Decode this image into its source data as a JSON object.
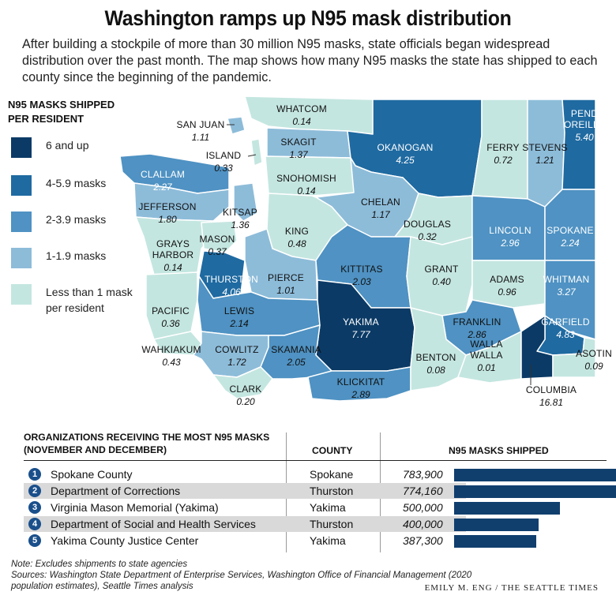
{
  "header": {
    "title": "Washington ramps up N95 mask distribution",
    "subtitle": "After building a stockpile of more than 30 million N95 masks, state officials began widespread distribution over the past month. The map shows how many N95 masks the state has shipped to each county since the beginning of the pandemic."
  },
  "legend": {
    "title": "N95 MASKS SHIPPED PER RESIDENT",
    "items": [
      {
        "label": "6 and up",
        "color": "#0b3a66"
      },
      {
        "label": "4-5.9 masks",
        "color": "#1f6aa1"
      },
      {
        "label": "2-3.9 masks",
        "color": "#4f92c3"
      },
      {
        "label": "1-1.9 masks",
        "color": "#8dbcd9"
      },
      {
        "label": "Less than 1 mask per resident",
        "color": "#c4e6e0"
      }
    ]
  },
  "counties": [
    {
      "name": "WHATCOM",
      "value": "0.14"
    },
    {
      "name": "SAN JUAN",
      "value": "1.11"
    },
    {
      "name": "ISLAND",
      "value": "0.33"
    },
    {
      "name": "SKAGIT",
      "value": "1.37"
    },
    {
      "name": "OKANOGAN",
      "value": "4.25"
    },
    {
      "name": "FERRY",
      "value": "0.72"
    },
    {
      "name": "STEVENS",
      "value": "1.21"
    },
    {
      "name": "PEND OREILLE",
      "value": "5.40"
    },
    {
      "name": "CLALLAM",
      "value": "2.27"
    },
    {
      "name": "SNOHOMISH",
      "value": "0.14"
    },
    {
      "name": "JEFFERSON",
      "value": "1.80"
    },
    {
      "name": "KITSAP",
      "value": "1.36"
    },
    {
      "name": "CHELAN",
      "value": "1.17"
    },
    {
      "name": "KING",
      "value": "0.48"
    },
    {
      "name": "DOUGLAS",
      "value": "0.32"
    },
    {
      "name": "LINCOLN",
      "value": "2.96"
    },
    {
      "name": "SPOKANE",
      "value": "2.24"
    },
    {
      "name": "GRAYS HARBOR",
      "value": "0.14"
    },
    {
      "name": "MASON",
      "value": "0.37"
    },
    {
      "name": "THURSTON",
      "value": "4.06"
    },
    {
      "name": "PIERCE",
      "value": "1.01"
    },
    {
      "name": "KITTITAS",
      "value": "2.03"
    },
    {
      "name": "GRANT",
      "value": "0.40"
    },
    {
      "name": "ADAMS",
      "value": "0.96"
    },
    {
      "name": "WHITMAN",
      "value": "3.27"
    },
    {
      "name": "PACIFIC",
      "value": "0.36"
    },
    {
      "name": "LEWIS",
      "value": "2.14"
    },
    {
      "name": "YAKIMA",
      "value": "7.77"
    },
    {
      "name": "FRANKLIN",
      "value": "2.86"
    },
    {
      "name": "GARFIELD",
      "value": "4.83"
    },
    {
      "name": "WAHKIAKUM",
      "value": "0.43"
    },
    {
      "name": "COWLITZ",
      "value": "1.72"
    },
    {
      "name": "SKAMANIA",
      "value": "2.05"
    },
    {
      "name": "BENTON",
      "value": "0.08"
    },
    {
      "name": "WALLA WALLA",
      "value": "0.01"
    },
    {
      "name": "ASOTIN",
      "value": "0.09"
    },
    {
      "name": "CLARK",
      "value": "0.20"
    },
    {
      "name": "KLICKITAT",
      "value": "2.89"
    },
    {
      "name": "COLUMBIA",
      "value": "16.81"
    }
  ],
  "table": {
    "title": "ORGANIZATIONS RECEIVING THE MOST N95 MASKS (NOVEMBER AND DECEMBER)",
    "col_county": "COUNTY",
    "col_shipped": "N95 MASKS SHIPPED",
    "rows": [
      {
        "rank": "1",
        "org": "Spokane County",
        "county": "Spokane",
        "shipped": "783,900",
        "value": 783900
      },
      {
        "rank": "2",
        "org": "Department of Corrections",
        "county": "Thurston",
        "shipped": "774,160",
        "value": 774160
      },
      {
        "rank": "3",
        "org": "Virginia Mason Memorial (Yakima)",
        "county": "Yakima",
        "shipped": "500,000",
        "value": 500000
      },
      {
        "rank": "4",
        "org": "Department of Social and Health Services",
        "county": "Thurston",
        "shipped": "400,000",
        "value": 400000
      },
      {
        "rank": "5",
        "org": "Yakima County Justice Center",
        "county": "Yakima",
        "shipped": "387,300",
        "value": 387300
      }
    ]
  },
  "footer": {
    "note": "Note: Excludes shipments to state agencies",
    "sources": "Sources: Washington State Department of Enterprise Services, Washington Office of Financial Management (2020 population estimates), Seattle Times analysis",
    "credit": "EMILY M. ENG / THE SEATTLE TIMES"
  }
}
